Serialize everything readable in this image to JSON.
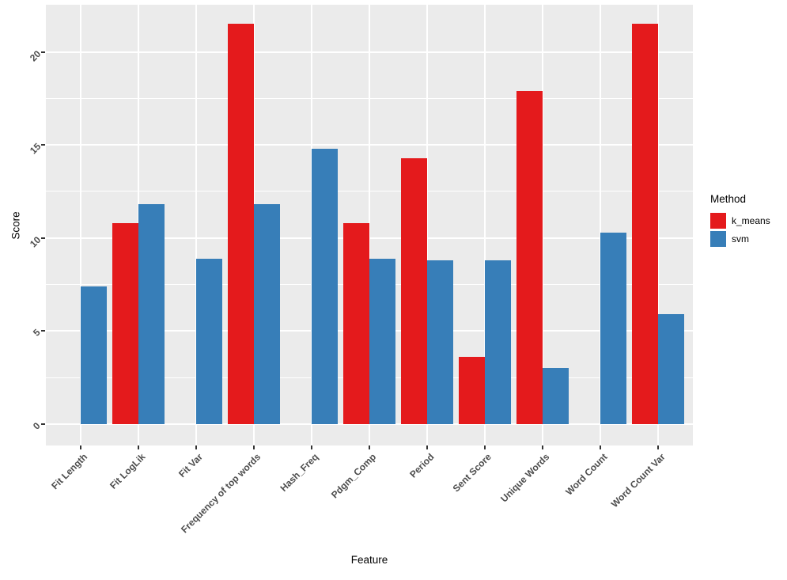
{
  "chart_data": {
    "type": "bar",
    "title": "",
    "xlabel": "Feature",
    "ylabel": "Score",
    "legend_title": "Method",
    "legend_position": "right",
    "grid": true,
    "panel_bg": "#EBEBEB",
    "grid_color": "#FFFFFF",
    "categories": [
      "Fit Length",
      "Fit LogLik",
      "Fit Var",
      "Frequency of top words",
      "Hash_Freq",
      "Pdgm_Comp",
      "Period",
      "Sent Score",
      "Unique Words",
      "Word Count",
      "Word Count Var"
    ],
    "series": [
      {
        "name": "k_means",
        "color": "#E41A1C",
        "values": [
          null,
          10.8,
          null,
          21.5,
          null,
          10.8,
          14.3,
          3.6,
          17.9,
          null,
          21.5
        ]
      },
      {
        "name": "svm",
        "color": "#377EB8",
        "values": [
          7.4,
          11.8,
          8.9,
          11.8,
          14.8,
          8.9,
          8.8,
          8.8,
          3.0,
          10.3,
          5.9
        ]
      }
    ],
    "y_ticks": [
      0,
      5,
      10,
      15,
      20
    ],
    "y_minor_gridlines": [
      2.5,
      7.5,
      12.5,
      17.5
    ],
    "ylim": [
      -1.15,
      22.53
    ]
  }
}
